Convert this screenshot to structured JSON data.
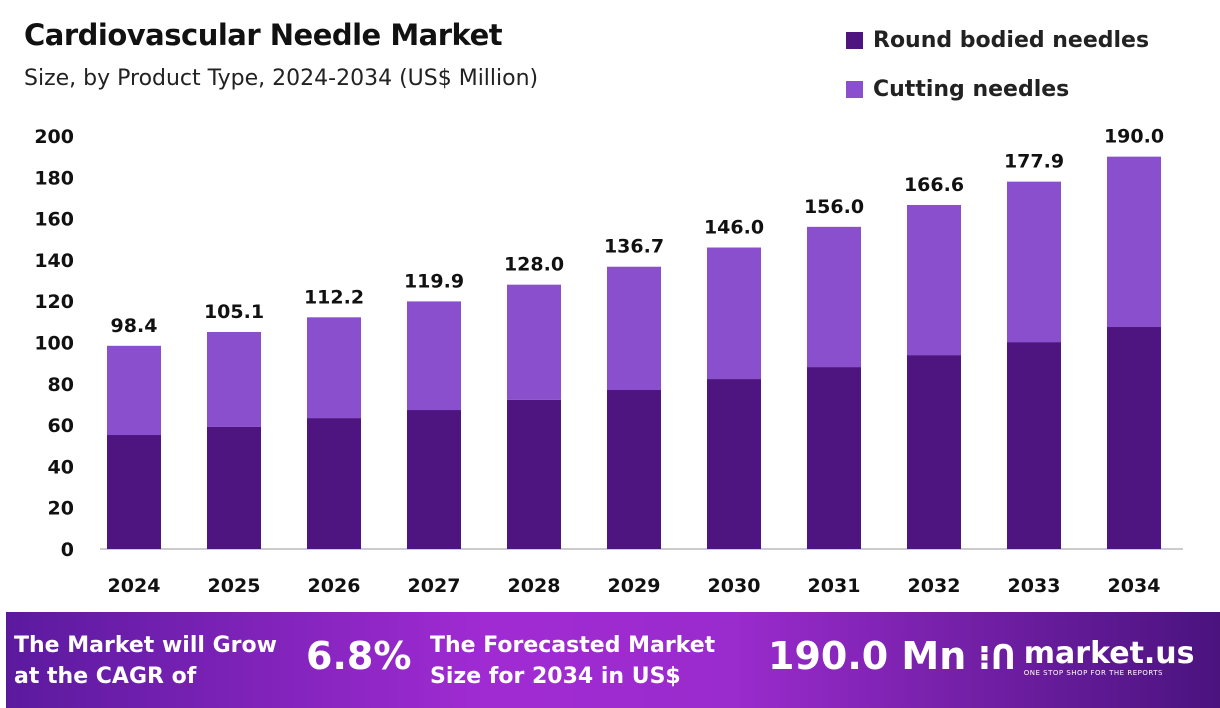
{
  "chart_data": {
    "type": "bar",
    "stacked": true,
    "title": "Cardiovascular Needle Market",
    "subtitle": "Size, by Product Type, 2024-2034 (US$ Million)",
    "categories": [
      "2024",
      "2025",
      "2026",
      "2027",
      "2028",
      "2029",
      "2030",
      "2031",
      "2032",
      "2033",
      "2034"
    ],
    "series": [
      {
        "name": "Round bodied needles",
        "color": "#4E1580",
        "values": [
          55.2,
          59.1,
          63.4,
          67.3,
          72.2,
          77.0,
          82.3,
          88.1,
          93.9,
          100.2,
          107.5
        ]
      },
      {
        "name": "Cutting needles",
        "color": "#8A4FCD",
        "values": [
          43.2,
          46.0,
          48.8,
          52.6,
          55.8,
          59.7,
          63.7,
          67.9,
          72.7,
          77.7,
          82.5
        ]
      }
    ],
    "totals": [
      "98.4",
      "105.1",
      "112.2",
      "119.9",
      "128.0",
      "136.7",
      "146.0",
      "156.0",
      "166.6",
      "177.9",
      "190.0"
    ],
    "ylim": [
      0,
      200
    ],
    "yticks": [
      "0",
      "20",
      "40",
      "60",
      "80",
      "100",
      "120",
      "140",
      "160",
      "180",
      "200"
    ],
    "grid": false,
    "legend_position": "top-right"
  },
  "banner": {
    "cagr_label": "The Market will Grow at the CAGR of",
    "cagr_value": "6.8%",
    "forecast_label": "The Forecasted Market Size for 2034 in US$",
    "forecast_value": "190.0 Mn",
    "logo_name": "market.us",
    "logo_tagline": "ONE STOP SHOP FOR THE REPORTS"
  }
}
